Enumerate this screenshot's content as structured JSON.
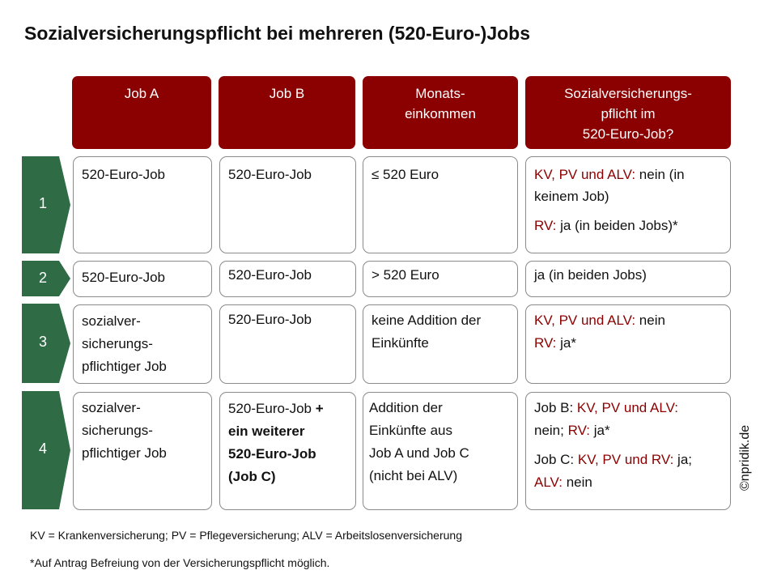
{
  "title": "Sozialversicherungspflicht bei mehreren (520-Euro-)Jobs",
  "colors": {
    "header_bg": "#8b0000",
    "row_marker": "#2f6b45",
    "highlight_text": "#8b0000"
  },
  "headers": {
    "job_a": "Job A",
    "job_b": "Job B",
    "income": [
      "Monats-",
      "einkommen"
    ],
    "duty": [
      "Sozialversicherungs-",
      "pflicht im",
      "520-Euro-Job?"
    ]
  },
  "rows": [
    {
      "number": "1",
      "job_a": [
        "520-Euro-Job"
      ],
      "job_b": [
        "520-Euro-Job"
      ],
      "income": [
        "≤ 520 Euro"
      ],
      "duty": [
        {
          "label": "KV, PV und ALV:",
          "text": " nein (in keinem Job)"
        },
        {
          "label": "RV:",
          "text": " ja (in beiden Jobs)*"
        }
      ]
    },
    {
      "number": "2",
      "job_a": [
        "520-Euro-Job"
      ],
      "job_b": [
        "520-Euro-Job"
      ],
      "income": [
        "> 520 Euro"
      ],
      "duty_text": "ja (in beiden Jobs)"
    },
    {
      "number": "3",
      "job_a": [
        "sozialver-",
        "sicherungs-",
        "pflichtiger Job"
      ],
      "job_b": [
        "520-Euro-Job"
      ],
      "income": [
        "keine Addition der",
        "Einkünfte"
      ],
      "duty": [
        {
          "label": "KV, PV und ALV:",
          "text": " nein"
        },
        {
          "label": "RV:",
          "text": " ja*"
        }
      ]
    },
    {
      "number": "4",
      "job_a": [
        "sozialver-",
        "sicherungs-",
        "pflichtiger Job"
      ],
      "job_b_plain": "520-Euro-Job",
      "job_b_bold": [
        "+",
        "ein weiterer",
        "520-Euro-Job",
        "(Job C)"
      ],
      "income": [
        "Addition der",
        "Einkünfte aus",
        "Job A und Job C",
        "(nicht bei ALV)"
      ],
      "duty_4": {
        "b_prefix": "Job B: ",
        "b_label": "KV, PV und ALV:",
        "b_text1": " nein; ",
        "b_label2": "RV:",
        "b_text2": " ja*",
        "c_prefix": "Job C: ",
        "c_label": "KV, PV und RV:",
        "c_text1": " ja;",
        "c_label2": "ALV:",
        "c_text2": " nein"
      }
    }
  ],
  "copyright": "©npridik.de",
  "footnotes": [
    "KV = Krankenversicherung; PV = Pflegeversicherung; ALV = Arbeitslosenversicherung",
    "*Auf Antrag Befreiung von der Versicherungspflicht möglich."
  ]
}
